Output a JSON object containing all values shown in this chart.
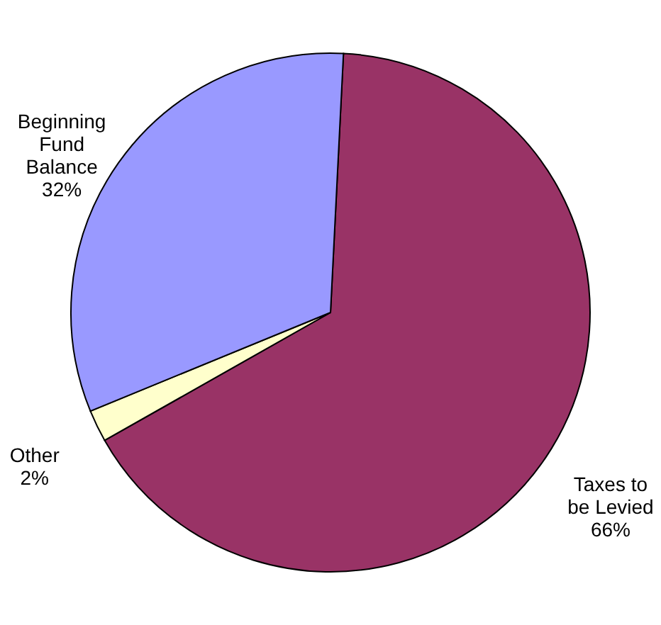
{
  "chart_data": {
    "type": "pie",
    "categories": [
      "Taxes to be Levied",
      "Other",
      "Beginning Fund Balance"
    ],
    "values": [
      66,
      2,
      32
    ],
    "colors": [
      "#993366",
      "#ffffcc",
      "#9999ff"
    ],
    "value_labels": [
      "66%",
      "2%",
      "32%"
    ]
  }
}
